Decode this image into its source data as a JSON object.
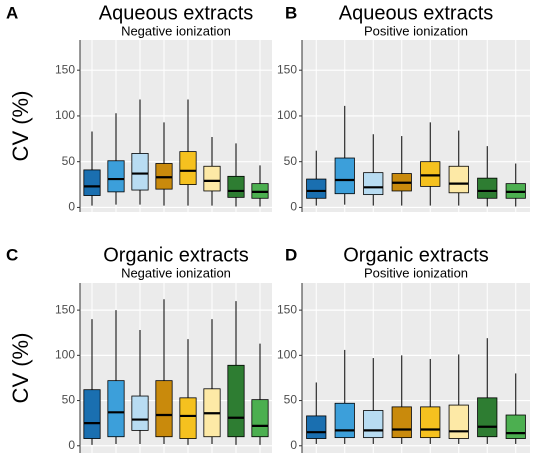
{
  "chart_data": [
    {
      "type": "box",
      "label": "A",
      "title": "Aqueous extracts",
      "subtitle": "Negative ionization",
      "ylabel": "CV (%)",
      "ylim": [
        -5,
        183
      ],
      "yticks": [
        0,
        50,
        100,
        150
      ],
      "grid": true,
      "colors": [
        "#1a6fb0",
        "#3c9fda",
        "#b8dcf2",
        "#c98a0c",
        "#f5c11f",
        "#fde9a6",
        "#2e7d32",
        "#4caf50"
      ],
      "boxes": [
        {
          "low": 2,
          "q1": 13,
          "median": 23,
          "q3": 41,
          "high": 83
        },
        {
          "low": 3,
          "q1": 17,
          "median": 31,
          "q3": 51,
          "high": 103
        },
        {
          "low": 3,
          "q1": 19,
          "median": 37,
          "q3": 59,
          "high": 118
        },
        {
          "low": 2,
          "q1": 20,
          "median": 33,
          "q3": 48,
          "high": 93
        },
        {
          "low": 2,
          "q1": 25,
          "median": 40,
          "q3": 61,
          "high": 118
        },
        {
          "low": 2,
          "q1": 18,
          "median": 29,
          "q3": 45,
          "high": 77
        },
        {
          "low": 1,
          "q1": 11,
          "median": 18,
          "q3": 34,
          "high": 70
        },
        {
          "low": 1,
          "q1": 10,
          "median": 17,
          "q3": 26,
          "high": 46
        }
      ]
    },
    {
      "type": "box",
      "label": "B",
      "title": "Aqueous extracts",
      "subtitle": "Positive ionization",
      "ylim": [
        -5,
        183
      ],
      "yticks": [
        0,
        50,
        100,
        150
      ],
      "grid": true,
      "colors": [
        "#1a6fb0",
        "#3c9fda",
        "#b8dcf2",
        "#c98a0c",
        "#f5c11f",
        "#fde9a6",
        "#2e7d32",
        "#4caf50"
      ],
      "boxes": [
        {
          "low": 2,
          "q1": 10,
          "median": 18,
          "q3": 31,
          "high": 62
        },
        {
          "low": 3,
          "q1": 15,
          "median": 30,
          "q3": 54,
          "high": 111
        },
        {
          "low": 2,
          "q1": 14,
          "median": 22,
          "q3": 38,
          "high": 80
        },
        {
          "low": 2,
          "q1": 18,
          "median": 27,
          "q3": 37,
          "high": 78
        },
        {
          "low": 2,
          "q1": 23,
          "median": 35,
          "q3": 50,
          "high": 93
        },
        {
          "low": 2,
          "q1": 16,
          "median": 26,
          "q3": 45,
          "high": 84
        },
        {
          "low": 1,
          "q1": 10,
          "median": 18,
          "q3": 32,
          "high": 67
        },
        {
          "low": 1,
          "q1": 10,
          "median": 17,
          "q3": 26,
          "high": 48
        }
      ]
    },
    {
      "type": "box",
      "label": "C",
      "title": "Organic extracts",
      "subtitle": "Negative ionization",
      "ylabel": "CV (%)",
      "ylim": [
        -8,
        180
      ],
      "yticks": [
        0,
        50,
        100,
        150
      ],
      "grid": true,
      "colors": [
        "#1a6fb0",
        "#3c9fda",
        "#b8dcf2",
        "#c98a0c",
        "#f5c11f",
        "#fde9a6",
        "#2e7d32",
        "#4caf50"
      ],
      "boxes": [
        {
          "low": 1,
          "q1": 8,
          "median": 25,
          "q3": 62,
          "high": 140
        },
        {
          "low": 2,
          "q1": 10,
          "median": 37,
          "q3": 72,
          "high": 150
        },
        {
          "low": 2,
          "q1": 17,
          "median": 29,
          "q3": 55,
          "high": 128
        },
        {
          "low": 2,
          "q1": 10,
          "median": 34,
          "q3": 72,
          "high": 162
        },
        {
          "low": 1,
          "q1": 8,
          "median": 33,
          "q3": 53,
          "high": 118
        },
        {
          "low": 2,
          "q1": 10,
          "median": 36,
          "q3": 63,
          "high": 140
        },
        {
          "low": 1,
          "q1": 10,
          "median": 31,
          "q3": 89,
          "high": 160
        },
        {
          "low": 1,
          "q1": 10,
          "median": 22,
          "q3": 51,
          "high": 113
        }
      ]
    },
    {
      "type": "box",
      "label": "D",
      "title": "Organic extracts",
      "subtitle": "Positive ionization",
      "ylim": [
        -8,
        180
      ],
      "yticks": [
        0,
        50,
        100,
        150
      ],
      "grid": true,
      "colors": [
        "#1a6fb0",
        "#3c9fda",
        "#b8dcf2",
        "#c98a0c",
        "#f5c11f",
        "#fde9a6",
        "#2e7d32",
        "#4caf50"
      ],
      "boxes": [
        {
          "low": 2,
          "q1": 8,
          "median": 15,
          "q3": 33,
          "high": 70
        },
        {
          "low": 2,
          "q1": 9,
          "median": 17,
          "q3": 47,
          "high": 106
        },
        {
          "low": 2,
          "q1": 9,
          "median": 17,
          "q3": 39,
          "high": 97
        },
        {
          "low": 2,
          "q1": 9,
          "median": 18,
          "q3": 43,
          "high": 100
        },
        {
          "low": 2,
          "q1": 9,
          "median": 18,
          "q3": 43,
          "high": 96
        },
        {
          "low": 2,
          "q1": 8,
          "median": 16,
          "q3": 45,
          "high": 101
        },
        {
          "low": 2,
          "q1": 10,
          "median": 21,
          "q3": 53,
          "high": 119
        },
        {
          "low": 2,
          "q1": 8,
          "median": 14,
          "q3": 34,
          "high": 80
        }
      ]
    }
  ]
}
